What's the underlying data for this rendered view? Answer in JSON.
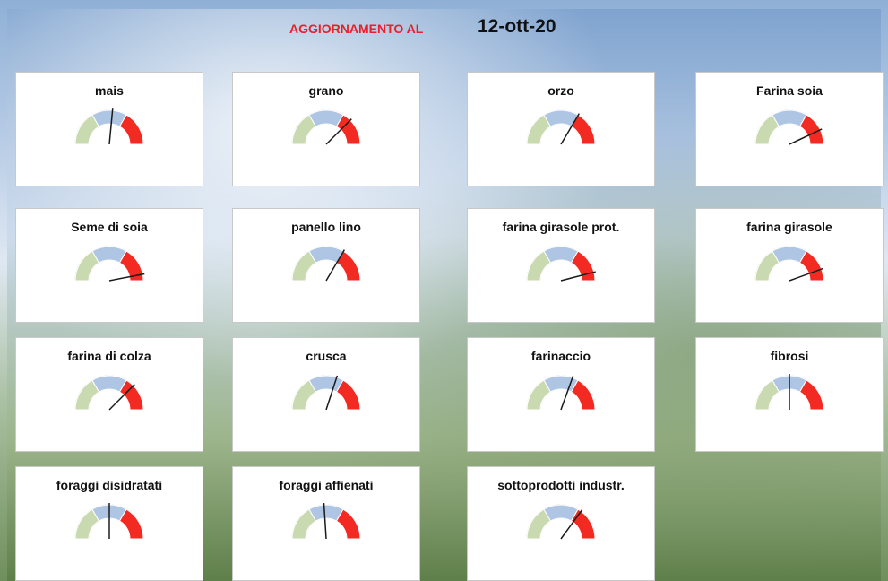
{
  "header": {
    "label": "AGGIORNAMENTO AL",
    "date": "12-ott-20"
  },
  "gauges": [
    {
      "label": "mais",
      "value": 53
    },
    {
      "label": "grano",
      "value": 75
    },
    {
      "label": "orzo",
      "value": 67
    },
    {
      "label": "Farina soia",
      "value": 86
    },
    {
      "label": "Seme di soia",
      "value": 94
    },
    {
      "label": "panello lino",
      "value": 67
    },
    {
      "label": "farina girasole prot.",
      "value": 92
    },
    {
      "label": "farina girasole",
      "value": 89
    },
    {
      "label": "farina di colza",
      "value": 75
    },
    {
      "label": "crusca",
      "value": 60
    },
    {
      "label": "farinaccio",
      "value": 61
    },
    {
      "label": "fibrosi",
      "value": 50
    },
    {
      "label": "foraggi disidratati",
      "value": 50
    },
    {
      "label": "foraggi affienati",
      "value": 48
    },
    {
      "label": "sottoprodotti industr.",
      "value": 70
    }
  ]
}
